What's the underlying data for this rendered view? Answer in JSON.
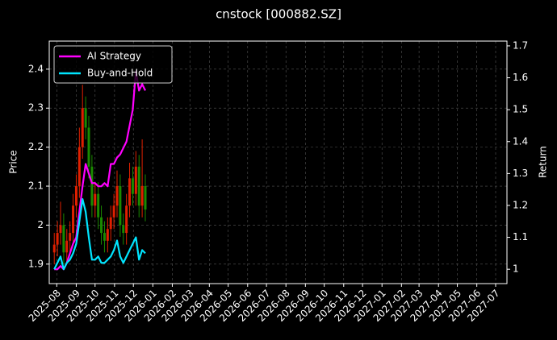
{
  "chart_data": {
    "type": "candlestick",
    "title": "cnstock [000882.SZ]",
    "y_label": "Price",
    "y2_label": "Return",
    "x": [
      "2025-07-28",
      "2025-08-02",
      "2025-08-07",
      "2025-08-12",
      "2025-08-17",
      "2025-08-22",
      "2025-08-27",
      "2025-09-01",
      "2025-09-06",
      "2025-09-11",
      "2025-09-16",
      "2025-09-21",
      "2025-09-26",
      "2025-10-01",
      "2025-10-06",
      "2025-10-11",
      "2025-10-16",
      "2025-10-21",
      "2025-10-26",
      "2025-10-31",
      "2025-11-05",
      "2025-11-10",
      "2025-11-15",
      "2025-11-20",
      "2025-11-25",
      "2025-11-30",
      "2025-12-05",
      "2025-12-10",
      "2025-12-15",
      "2025-12-20"
    ],
    "open": [
      1.93,
      1.95,
      1.98,
      2.0,
      1.93,
      1.96,
      1.98,
      2.05,
      2.1,
      2.2,
      2.3,
      2.25,
      2.15,
      2.05,
      2.08,
      2.02,
      1.98,
      1.96,
      1.99,
      2.02,
      2.05,
      2.1,
      2.0,
      1.98,
      2.05,
      2.12,
      2.08,
      2.15,
      2.05,
      2.1
    ],
    "high": [
      1.98,
      2.01,
      2.06,
      2.03,
      1.99,
      2.01,
      2.08,
      2.13,
      2.25,
      2.36,
      2.33,
      2.28,
      2.18,
      2.11,
      2.11,
      2.05,
      2.01,
      2.02,
      2.05,
      2.08,
      2.14,
      2.13,
      2.03,
      2.08,
      2.16,
      2.15,
      2.19,
      2.18,
      2.22,
      2.13
    ],
    "low": [
      1.9,
      1.92,
      1.95,
      1.9,
      1.9,
      1.93,
      1.95,
      2.02,
      2.07,
      2.17,
      2.22,
      2.12,
      2.02,
      2.02,
      1.99,
      1.95,
      1.93,
      1.93,
      1.96,
      1.99,
      2.02,
      1.97,
      1.95,
      1.95,
      2.02,
      2.05,
      2.05,
      2.02,
      2.02,
      2.01
    ],
    "close": [
      1.95,
      1.98,
      2.0,
      1.93,
      1.96,
      1.98,
      2.05,
      2.1,
      2.2,
      2.3,
      2.25,
      2.15,
      2.05,
      2.08,
      2.02,
      1.98,
      1.96,
      1.99,
      2.02,
      2.05,
      2.1,
      2.0,
      1.98,
      2.05,
      2.12,
      2.08,
      2.15,
      2.05,
      2.1,
      2.04
    ],
    "up_color": "#e02000",
    "down_color": "#1a8a00",
    "series": [
      {
        "name": "AI Strategy",
        "color": "#ff00ff",
        "axis": "y2",
        "values": [
          1.0,
          1.0,
          1.01,
          1.0,
          1.02,
          1.05,
          1.08,
          1.1,
          1.18,
          1.26,
          1.33,
          1.3,
          1.27,
          1.27,
          1.26,
          1.26,
          1.27,
          1.26,
          1.33,
          1.33,
          1.35,
          1.36,
          1.38,
          1.4,
          1.45,
          1.5,
          1.62,
          1.56,
          1.58,
          1.56
        ]
      },
      {
        "name": "Buy-and-Hold",
        "color": "#00e5ff",
        "axis": "y2",
        "values": [
          1.0,
          1.02,
          1.04,
          1.0,
          1.02,
          1.03,
          1.05,
          1.08,
          1.15,
          1.22,
          1.18,
          1.1,
          1.03,
          1.03,
          1.04,
          1.02,
          1.02,
          1.03,
          1.04,
          1.06,
          1.09,
          1.04,
          1.02,
          1.04,
          1.06,
          1.08,
          1.1,
          1.03,
          1.06,
          1.05
        ]
      }
    ],
    "xlim": [
      "2025-07-20",
      "2027-07-19"
    ],
    "xticks": [
      "2025-08",
      "2025-09",
      "2025-10",
      "2025-11",
      "2025-12",
      "2026-01",
      "2026-02",
      "2026-03",
      "2026-04",
      "2026-05",
      "2026-06",
      "2026-07",
      "2026-08",
      "2026-09",
      "2026-10",
      "2026-11",
      "2026-12",
      "2027-01",
      "2027-02",
      "2027-03",
      "2027-04",
      "2027-05",
      "2027-06",
      "2027-07"
    ],
    "ylim": [
      1.85,
      2.472
    ],
    "yticks": [
      1.9,
      2.0,
      2.1,
      2.2,
      2.3,
      2.4
    ],
    "y2lim": [
      0.955,
      1.715
    ],
    "y2ticks": [
      1.0,
      1.1,
      1.2,
      1.3,
      1.4,
      1.5,
      1.6,
      1.7
    ],
    "grid": true,
    "legend": "upper left"
  }
}
